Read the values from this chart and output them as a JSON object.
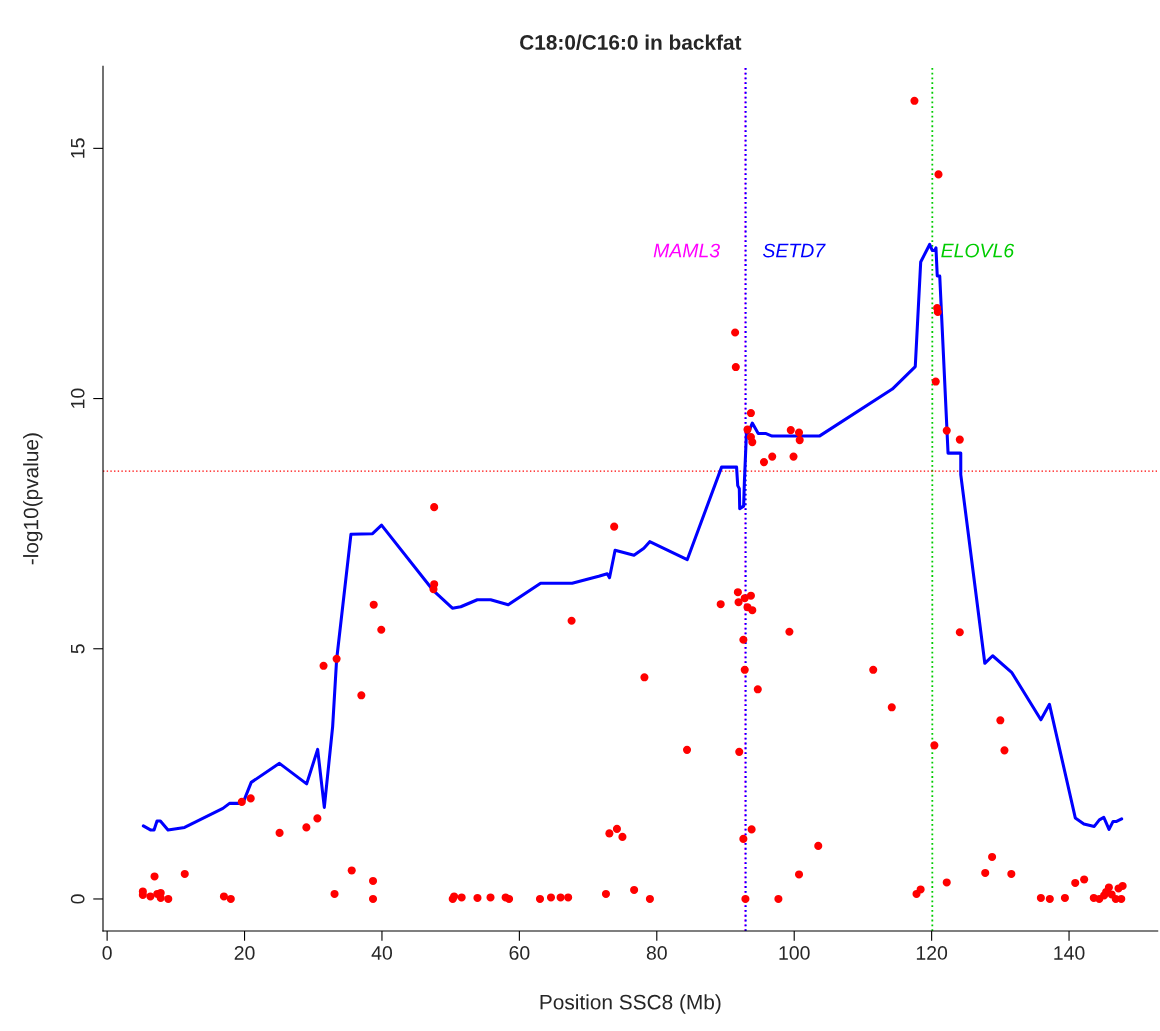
{
  "chart_data": {
    "type": "scatter",
    "title": "C18:0/C16:0 in backfat",
    "xlabel": "Position SSC8 (Mb)",
    "ylabel": "-log10(pvalue)",
    "xlim": [
      -0.6,
      152.9
    ],
    "ylim": [
      -0.64,
      16.64
    ],
    "xticks": [
      0,
      20,
      40,
      60,
      80,
      100,
      120,
      140
    ],
    "yticks": [
      0,
      5,
      10,
      15
    ],
    "grid": false,
    "legend": false,
    "ref_lines": [
      {
        "axis": "x",
        "value": 92.85,
        "label": "MAML3",
        "color": "#ff00ff",
        "line_style": "dotted"
      },
      {
        "axis": "x",
        "value": 92.95,
        "label": "SETD7",
        "color": "#0000ff",
        "line_style": "dotted"
      },
      {
        "axis": "x",
        "value": 120.1,
        "label": "ELOVL6",
        "color": "#00cc00",
        "line_style": "dotted"
      },
      {
        "axis": "y",
        "value": 8.55,
        "color": "#ff0000",
        "line_style": "dotted"
      }
    ],
    "series": [
      {
        "type": "line",
        "color": "#0000ff",
        "marker": "none",
        "line_style": "solid",
        "x": [
          5.27,
          6.3,
          6.83,
          7.26,
          7.75,
          8.86,
          11.28,
          16.85,
          17.82,
          19.75,
          20.97,
          25.08,
          29.04,
          30.64,
          31.61,
          32.82,
          33.4,
          35.49,
          38.63,
          39.94,
          47.49,
          50.25,
          51.47,
          53.88,
          55.82,
          58.38,
          63.09,
          67.68,
          71.55,
          72.79,
          73.12,
          73.93,
          76.68,
          78.12,
          78.97,
          84.43,
          89.43,
          91.61,
          91.78,
          92.01,
          92.07,
          92.64,
          92.75,
          93.05,
          93.33,
          93.9,
          94.76,
          95.9,
          96.78,
          103.66,
          114.28,
          117.62,
          118.41,
          119.71,
          120.09,
          120.45,
          120.63,
          120.82,
          121.18,
          122.39,
          124.24,
          124.24,
          127.74,
          128.88,
          131.64,
          135.9,
          137.15,
          140.91,
          142.16,
          143.67,
          144.41,
          145.06,
          145.82,
          146.41,
          146.92,
          147.66
        ],
        "values": [
          1.46,
          1.38,
          1.38,
          1.56,
          1.56,
          1.38,
          1.43,
          1.81,
          1.91,
          1.91,
          2.33,
          2.71,
          2.3,
          2.99,
          1.83,
          3.44,
          4.78,
          7.29,
          7.3,
          7.47,
          6.16,
          5.81,
          5.84,
          5.98,
          5.98,
          5.88,
          6.31,
          6.31,
          6.45,
          6.5,
          6.42,
          6.97,
          6.87,
          7.01,
          7.14,
          6.78,
          8.63,
          8.63,
          8.26,
          8.2,
          7.8,
          7.85,
          8.34,
          9.32,
          9.32,
          9.51,
          9.3,
          9.3,
          9.25,
          9.25,
          10.19,
          10.64,
          12.73,
          13.08,
          12.96,
          12.96,
          13.01,
          12.45,
          12.45,
          8.91,
          8.91,
          8.48,
          4.71,
          4.86,
          4.53,
          3.58,
          3.89,
          1.62,
          1.5,
          1.45,
          1.58,
          1.63,
          1.39,
          1.55,
          1.55,
          1.6
        ]
      },
      {
        "color": "#ff0000",
        "marker": "circle",
        "x": [
          5.2,
          5.2,
          6.3,
          6.9,
          7.3,
          7.8,
          7.8,
          8.9,
          11.3,
          17.0,
          18.0,
          19.6,
          20.9,
          25.1,
          29.0,
          30.6,
          31.5,
          33.1,
          33.4,
          35.6,
          37.0,
          38.7,
          38.7,
          38.8,
          39.9,
          47.5,
          47.6,
          47.6,
          50.3,
          50.5,
          51.6,
          53.9,
          55.8,
          58.0,
          58.5,
          63.0,
          64.6,
          66.0,
          67.1,
          67.6,
          72.6,
          73.1,
          73.8,
          74.2,
          75.0,
          76.7,
          78.2,
          79.0,
          84.4,
          89.3,
          91.4,
          91.5,
          91.8,
          91.9,
          92.0,
          92.6,
          92.6,
          92.8,
          92.8,
          92.9,
          93.2,
          93.2,
          93.7,
          93.7,
          93.7,
          93.8,
          93.9,
          93.9,
          94.7,
          95.6,
          96.8,
          97.7,
          99.3,
          99.5,
          99.9,
          100.7,
          100.7,
          100.8,
          103.5,
          111.5,
          114.2,
          117.5,
          117.8,
          118.4,
          120.4,
          120.6,
          120.8,
          120.9,
          121.0,
          122.2,
          122.2,
          124.1,
          124.1,
          127.8,
          128.8,
          130.0,
          130.6,
          131.6,
          135.9,
          137.2,
          139.4,
          140.9,
          142.2,
          143.6,
          144.4,
          145.1,
          145.4,
          145.8,
          146.2,
          146.8,
          147.2,
          147.6,
          147.8
        ],
        "values": [
          0.15,
          0.08,
          0.05,
          0.45,
          0.1,
          0.12,
          0.02,
          0.0,
          0.5,
          0.05,
          0.0,
          1.94,
          2.01,
          1.32,
          1.43,
          1.61,
          4.66,
          0.1,
          4.8,
          0.57,
          4.07,
          0.36,
          0.0,
          5.88,
          5.38,
          6.19,
          6.29,
          7.83,
          0.0,
          0.05,
          0.03,
          0.02,
          0.03,
          0.03,
          0.0,
          0.0,
          0.03,
          0.03,
          0.03,
          5.56,
          0.1,
          1.31,
          7.44,
          1.4,
          1.24,
          0.18,
          4.43,
          0.0,
          2.98,
          5.89,
          11.32,
          10.63,
          6.13,
          5.93,
          2.94,
          5.18,
          1.2,
          6.01,
          4.58,
          0.0,
          9.38,
          5.83,
          9.71,
          9.23,
          6.06,
          1.39,
          9.13,
          5.77,
          4.19,
          8.73,
          8.84,
          0.0,
          5.34,
          9.37,
          8.84,
          9.32,
          0.49,
          9.17,
          1.06,
          4.58,
          3.83,
          15.95,
          0.1,
          0.19,
          3.07,
          10.34,
          11.81,
          11.73,
          14.48,
          9.36,
          0.33,
          9.18,
          5.33,
          0.52,
          0.84,
          3.57,
          2.97,
          0.5,
          0.02,
          0.0,
          0.02,
          0.32,
          0.39,
          0.02,
          0.0,
          0.07,
          0.14,
          0.23,
          0.09,
          0.0,
          0.21,
          0.0,
          0.26
        ]
      }
    ]
  }
}
